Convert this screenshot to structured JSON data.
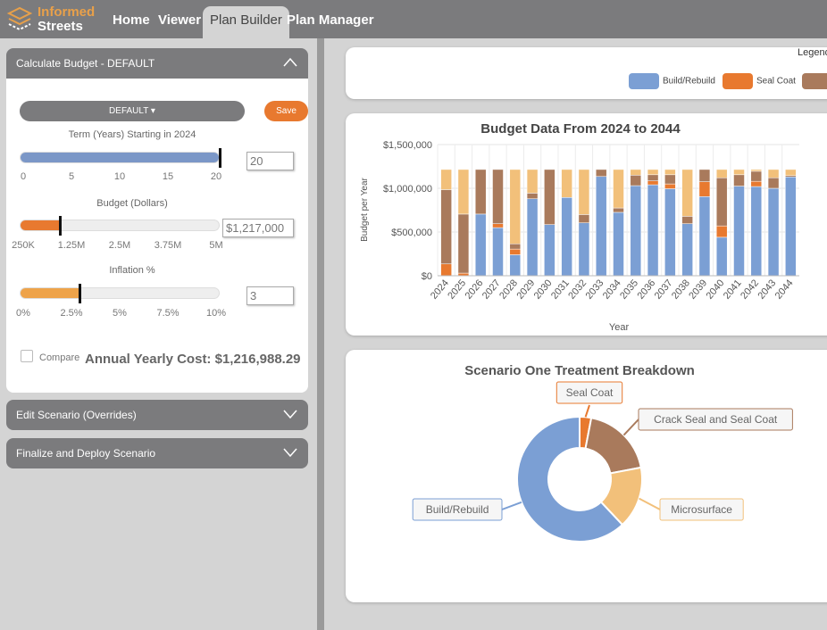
{
  "nav": {
    "logo_line1": "Informed",
    "logo_line2": "Streets",
    "tabs": [
      "Home",
      "Viewer",
      "Plan Builder",
      "Plan Manager"
    ],
    "active": "Plan Builder"
  },
  "panel": {
    "calc_title": "Calculate Budget - DEFAULT",
    "scenario_dropdown": "DEFAULT ▾",
    "save_label": "Save",
    "term": {
      "label": "Term (Years) Starting in 2024",
      "value": "20",
      "fraction": 1.0,
      "ticks": [
        "0",
        "5",
        "10",
        "15",
        "20"
      ]
    },
    "budget": {
      "label": "Budget (Dollars)",
      "value": "$1,217,000",
      "fraction": 0.2,
      "ticks": [
        "250K",
        "1.25M",
        "2.5M",
        "3.75M",
        "5M"
      ]
    },
    "inflation": {
      "label": "Inflation %",
      "value": "3",
      "fraction": 0.3,
      "ticks": [
        "0%",
        "2.5%",
        "5%",
        "7.5%",
        "10%"
      ]
    },
    "compare_label": "Compare",
    "compare_checked": false,
    "annual_cost": "Annual Yearly Cost: $1,216,988.29",
    "edit_title": "Edit Scenario (Overrides)",
    "finalize_title": "Finalize and Deploy Scenario"
  },
  "legend": {
    "title": "Legend",
    "items": [
      {
        "label": "Build/Rebuild",
        "color": "#7b9fd4"
      },
      {
        "label": "Seal Coat",
        "color": "#e8792f"
      },
      {
        "label": "",
        "color": "#a97a5c"
      }
    ]
  },
  "colors": {
    "build": "#7b9fd4",
    "seal": "#e8792f",
    "crack": "#a97a5c",
    "micro": "#f2c07a"
  },
  "chart_data": [
    {
      "type": "bar",
      "stacked": true,
      "title": "Budget Data From 2024 to 2044",
      "xlabel": "Year",
      "ylabel": "Budget per Year",
      "ylim": [
        0,
        1500000
      ],
      "yticks": [
        "$0",
        "$500,000",
        "$1,000,000",
        "$1,500,000"
      ],
      "grid": true,
      "categories": [
        "2024",
        "2025",
        "2026",
        "2027",
        "2028",
        "2029",
        "2030",
        "2031",
        "2032",
        "2033",
        "2034",
        "2035",
        "2036",
        "2037",
        "2038",
        "2039",
        "2040",
        "2041",
        "2042",
        "2043",
        "2044"
      ],
      "series": [
        {
          "key": "build",
          "values": [
            0,
            0,
            705000,
            550000,
            240000,
            880000,
            585000,
            895000,
            605000,
            1135000,
            725000,
            1030000,
            1040000,
            995000,
            595000,
            905000,
            440000,
            1025000,
            1020000,
            1000000,
            1130000
          ]
        },
        {
          "key": "seal",
          "values": [
            135000,
            30000,
            0,
            45000,
            65000,
            0,
            0,
            0,
            0,
            0,
            0,
            0,
            45000,
            55000,
            0,
            170000,
            130000,
            0,
            60000,
            0,
            0
          ]
        },
        {
          "key": "crack",
          "values": [
            850000,
            675000,
            510000,
            620000,
            60000,
            65000,
            630000,
            0,
            95000,
            80000,
            50000,
            120000,
            70000,
            105000,
            85000,
            140000,
            550000,
            130000,
            115000,
            120000,
            15000
          ]
        },
        {
          "key": "micro",
          "values": [
            230000,
            510000,
            0,
            0,
            850000,
            270000,
            0,
            320000,
            515000,
            0,
            440000,
            65000,
            60000,
            60000,
            535000,
            0,
            95000,
            60000,
            20000,
            95000,
            70000
          ]
        }
      ]
    },
    {
      "type": "pie",
      "donut": true,
      "title": "Scenario One Treatment Breakdown",
      "slices": [
        {
          "label": "Seal Coat",
          "value": 3,
          "key": "seal"
        },
        {
          "label": "Crack Seal and Seal Coat",
          "value": 19,
          "key": "crack"
        },
        {
          "label": "Microsurface",
          "value": 16,
          "key": "micro"
        },
        {
          "label": "Build/Rebuild",
          "value": 62,
          "key": "build"
        }
      ]
    }
  ]
}
